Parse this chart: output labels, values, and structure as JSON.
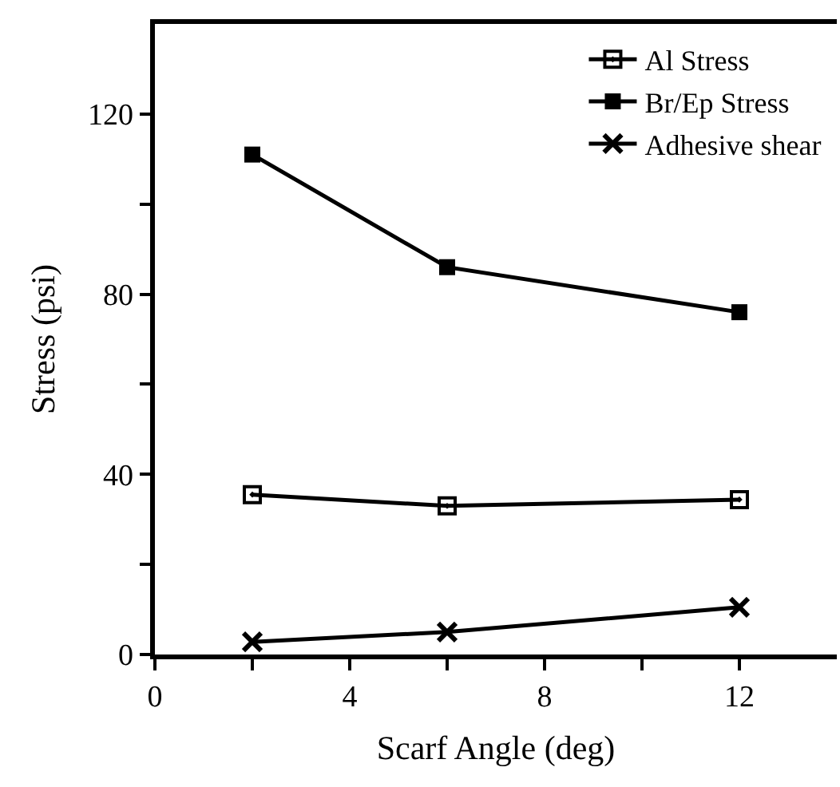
{
  "chart_data": {
    "type": "line",
    "xlabel": "Scarf Angle (deg)",
    "ylabel": "Stress (psi)",
    "x": [
      2,
      6,
      12
    ],
    "series": [
      {
        "name": "Al Stress",
        "color": "#000000",
        "marker": "square-open-dot",
        "values": [
          35.5,
          33,
          34.4
        ]
      },
      {
        "name": "Br/Ep Stress",
        "color": "#000000",
        "marker": "square",
        "values": [
          111,
          86,
          76
        ]
      },
      {
        "name": "Adhesive shear",
        "color": "#000000",
        "marker": "x",
        "values": [
          2.8,
          5,
          10.5
        ]
      }
    ],
    "xlim": [
      0,
      14
    ],
    "ylim": [
      0,
      140
    ],
    "xticks": [
      0,
      {
        "value": 2,
        "label": null
      },
      4,
      {
        "value": 6,
        "label": null
      },
      8,
      {
        "value": 10,
        "label": null
      },
      12
    ],
    "yticks": [
      0,
      {
        "value": 20,
        "label": null
      },
      40,
      {
        "value": 60,
        "label": null
      },
      80,
      {
        "value": 100,
        "label": null
      },
      120
    ],
    "legend": "top right",
    "line_style": "solid"
  }
}
